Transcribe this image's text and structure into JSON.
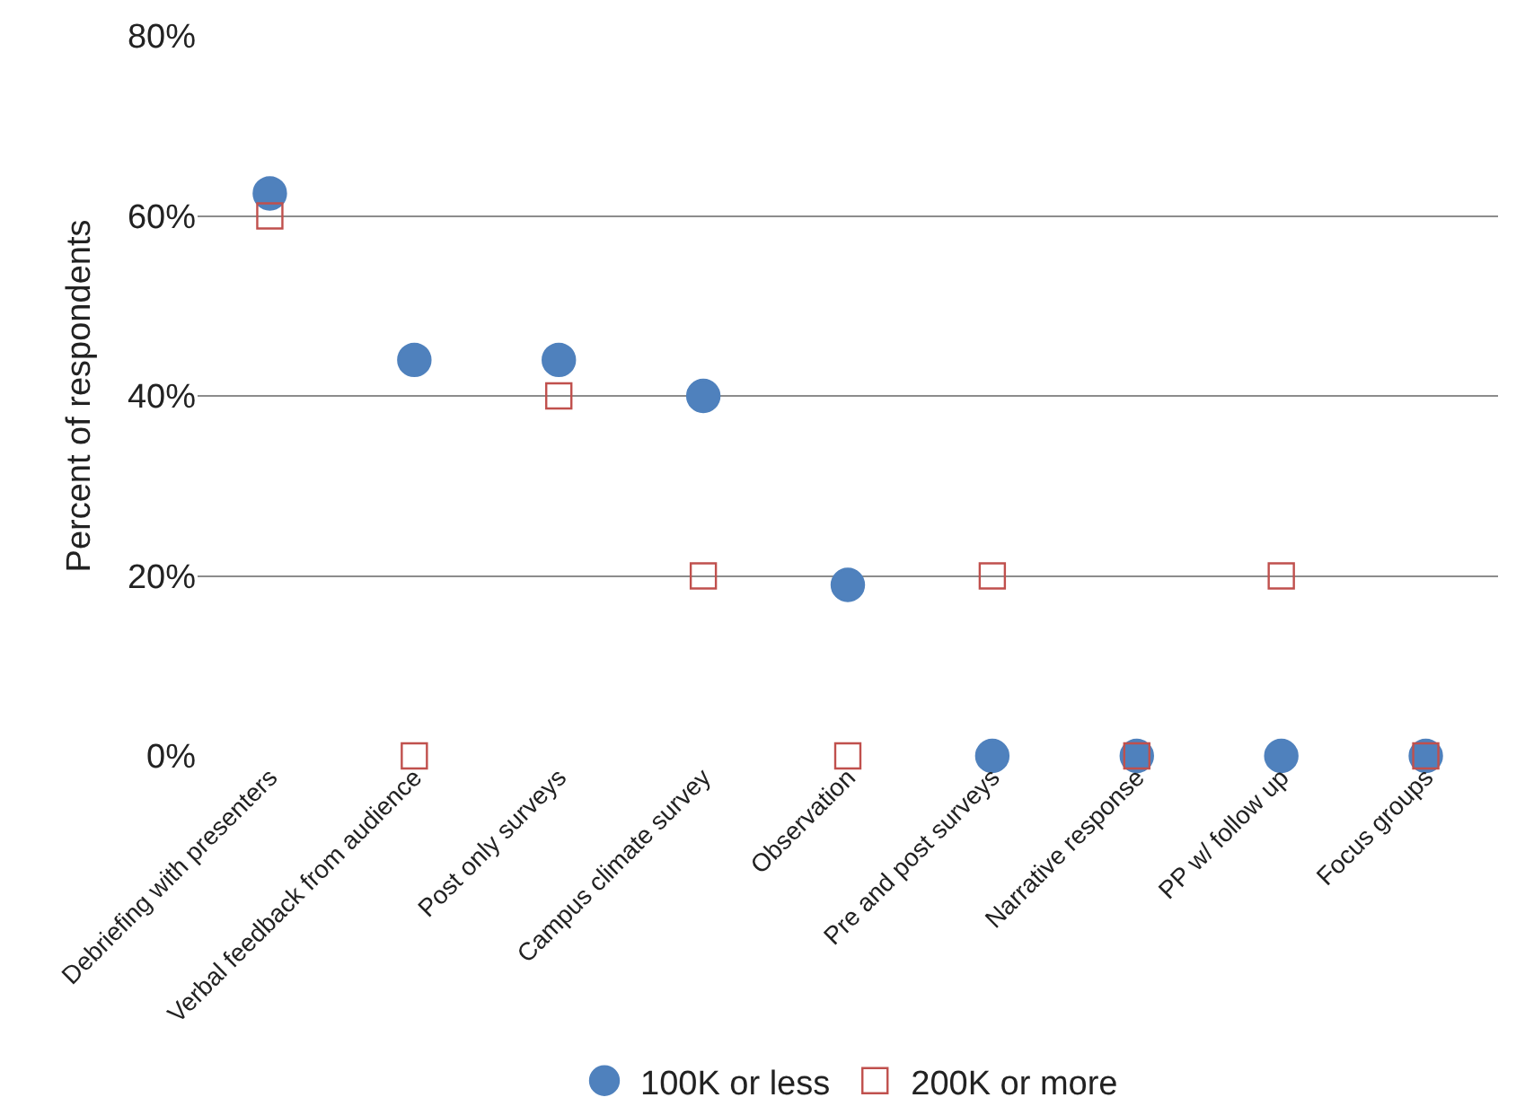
{
  "chart_data": {
    "type": "scatter",
    "ylabel": "Percent of respondents",
    "categories": [
      "Debriefing with presenters",
      "Verbal feedback from audience",
      "Post only surveys",
      "Campus climate survey",
      "Observation",
      "Pre and post surveys",
      "Narrative response",
      "PP w/ follow up",
      "Focus groups"
    ],
    "series": [
      {
        "name": "100K or less",
        "color": "#4f81bd",
        "marker": "circle",
        "values": [
          62.5,
          44,
          44,
          40,
          19,
          0,
          0,
          0,
          0
        ]
      },
      {
        "name": "200K or more",
        "color": "#c0504d",
        "marker": "square",
        "values": [
          60,
          0,
          40,
          20,
          0,
          20,
          0,
          20,
          0
        ]
      }
    ],
    "ylim": [
      0,
      80
    ],
    "yticks": [
      {
        "value": 0,
        "label": "0%"
      },
      {
        "value": 20,
        "label": "20%"
      },
      {
        "value": 40,
        "label": "40%"
      },
      {
        "value": 60,
        "label": "60%"
      },
      {
        "value": 80,
        "label": "80%"
      }
    ],
    "grid": "y",
    "legend": "bottom"
  }
}
